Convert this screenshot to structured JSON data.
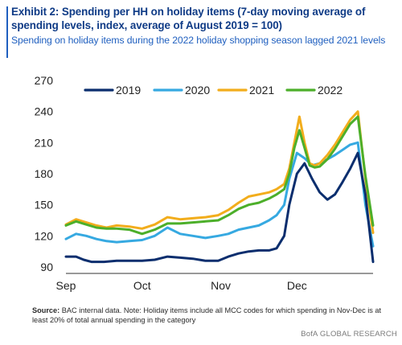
{
  "title": "Exhibit 2: Spending per HH on holiday items (7-day moving average of spending levels, index, average of August 2019 = 100)",
  "subtitle": "Spending on holiday items during the 2022 holiday shopping season lagged 2021 levels",
  "source_label": "Source:",
  "source_text": "BAC internal data. Note: Holiday items include all MCC codes for which spending in Nov-Dec is at least 20% of total annual spending in the category",
  "brand": "BofA GLOBAL RESEARCH",
  "colors": {
    "title": "#0f3b86",
    "subtitle": "#1f5fbf",
    "series_2019": "#0b2e6e",
    "series_2020": "#36a9e1",
    "series_2021": "#f2ad1c",
    "series_2022": "#4caf2a"
  },
  "chart_data": {
    "type": "line",
    "title": "",
    "xlabel": "",
    "ylabel": "",
    "ylim": [
      90,
      270
    ],
    "yticks": [
      90,
      120,
      150,
      180,
      210,
      240,
      270
    ],
    "x_tick_labels": [
      "Sep",
      "Oct",
      "Nov",
      "Dec"
    ],
    "x_tick_days": [
      0,
      30,
      61,
      91
    ],
    "x_domain_days": [
      0,
      121
    ],
    "x_unit": "days from Sep 1",
    "grid": false,
    "legend_position": "top",
    "series": [
      {
        "name": "2019",
        "color": "#0b2e6e",
        "x": [
          0,
          4,
          7,
          10,
          15,
          20,
          25,
          30,
          35,
          40,
          45,
          50,
          55,
          60,
          64,
          68,
          72,
          76,
          80,
          83,
          86,
          88,
          91,
          94,
          97,
          100,
          103,
          106,
          109,
          112,
          115,
          118,
          121
        ],
        "y": [
          100,
          100,
          97,
          95,
          95,
          96,
          96,
          96,
          97,
          100,
          99,
          98,
          96,
          96,
          100,
          103,
          105,
          106,
          106,
          108,
          120,
          150,
          180,
          190,
          175,
          162,
          155,
          160,
          172,
          185,
          200,
          160,
          95
        ]
      },
      {
        "name": "2020",
        "color": "#36a9e1",
        "x": [
          0,
          4,
          8,
          12,
          16,
          20,
          25,
          30,
          35,
          40,
          45,
          50,
          55,
          60,
          64,
          68,
          72,
          76,
          80,
          83,
          86,
          88,
          91,
          94,
          97,
          100,
          103,
          106,
          109,
          112,
          115,
          118,
          121
        ],
        "y": [
          117,
          122,
          120,
          117,
          115,
          114,
          115,
          116,
          120,
          128,
          122,
          120,
          118,
          120,
          122,
          126,
          128,
          130,
          135,
          140,
          150,
          175,
          200,
          195,
          188,
          190,
          194,
          198,
          203,
          208,
          210,
          150,
          110
        ]
      },
      {
        "name": "2021",
        "color": "#f2ad1c",
        "x": [
          0,
          4,
          8,
          12,
          16,
          20,
          25,
          30,
          35,
          40,
          45,
          50,
          55,
          60,
          64,
          68,
          72,
          76,
          80,
          83,
          86,
          88,
          90,
          92,
          94,
          96,
          98,
          100,
          103,
          106,
          109,
          112,
          115,
          118,
          121
        ],
        "y": [
          131,
          136,
          133,
          130,
          128,
          130,
          129,
          127,
          131,
          138,
          136,
          137,
          138,
          140,
          145,
          152,
          158,
          160,
          162,
          165,
          170,
          185,
          210,
          235,
          210,
          190,
          188,
          190,
          198,
          208,
          220,
          232,
          240,
          175,
          123
        ]
      },
      {
        "name": "2022",
        "color": "#4caf2a",
        "x": [
          0,
          4,
          8,
          12,
          16,
          20,
          25,
          30,
          35,
          40,
          45,
          50,
          55,
          60,
          64,
          68,
          72,
          76,
          80,
          83,
          86,
          88,
          90,
          92,
          94,
          96,
          98,
          100,
          103,
          106,
          109,
          112,
          115,
          118,
          121
        ],
        "y": [
          130,
          134,
          131,
          128,
          127,
          127,
          126,
          122,
          126,
          132,
          132,
          133,
          134,
          135,
          140,
          146,
          150,
          152,
          156,
          160,
          165,
          180,
          205,
          222,
          205,
          188,
          186,
          187,
          194,
          204,
          216,
          228,
          235,
          178,
          130
        ]
      }
    ]
  }
}
